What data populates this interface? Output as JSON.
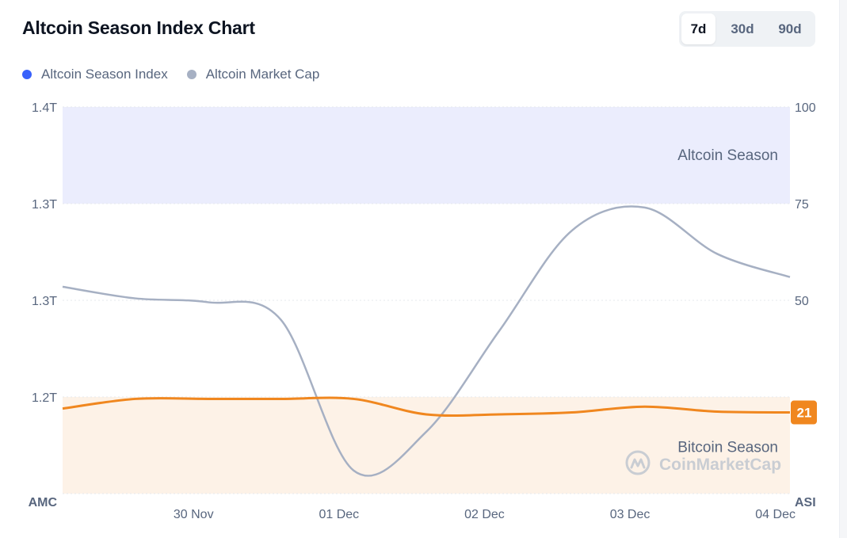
{
  "title": "Altcoin Season Index Chart",
  "range_toggle": {
    "options": [
      "7d",
      "30d",
      "90d"
    ],
    "selected": "7d"
  },
  "legend": [
    {
      "label": "Altcoin Season Index",
      "color": "#3861fb"
    },
    {
      "label": "Altcoin Market Cap",
      "color": "#a6b0c3"
    }
  ],
  "watermark": "CoinMarketCap",
  "chart_data": {
    "type": "line",
    "x_ticks": [
      "30 Nov",
      "01 Dec",
      "02 Dec",
      "03 Dec",
      "04 Dec"
    ],
    "left_axis": {
      "title": "AMC",
      "ticks": [
        "1.4T",
        "1.3T",
        "1.3T",
        "1.2T"
      ]
    },
    "right_axis": {
      "title": "ASI",
      "ticks": [
        "100",
        "75",
        "50"
      ],
      "ylim": [
        0,
        100
      ]
    },
    "zones": [
      {
        "label": "Altcoin Season",
        "from": 75,
        "to": 100,
        "color": "#ebedfd"
      },
      {
        "label": "Bitcoin Season",
        "from": 0,
        "to": 25,
        "color": "#fdf2e7"
      }
    ],
    "series": [
      {
        "name": "Altcoin Season Index",
        "axis": "right",
        "color": "#f0871f",
        "x": [
          0,
          0.5,
          1.0,
          1.5,
          2.0,
          2.5,
          3.0,
          3.5,
          4.0,
          4.5,
          5.0
        ],
        "values": [
          22,
          24.5,
          24.5,
          24.5,
          24.5,
          20.5,
          20.5,
          21,
          22.5,
          21.2,
          21
        ],
        "current_value": "21"
      },
      {
        "name": "Altcoin Market Cap",
        "axis": "left",
        "color": "#a6b0c3",
        "x": [
          0,
          0.5,
          1.0,
          1.5,
          2.0,
          2.5,
          3.0,
          3.5,
          4.0,
          4.5,
          5.0
        ],
        "values_asi_scale": [
          53.5,
          50.5,
          49.5,
          45,
          6,
          16,
          42,
          68,
          74,
          62,
          56
        ]
      }
    ]
  }
}
